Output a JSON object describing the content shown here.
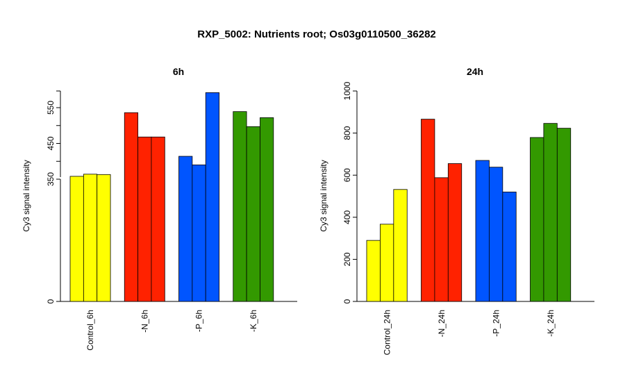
{
  "figure": {
    "title": "RXP_5002: Nutrients root; Os03g0110500_36282"
  },
  "chart_data": [
    {
      "type": "bar",
      "title": "6h",
      "xlabel": "",
      "ylabel": "Cy3 signal intensity",
      "ylim": [
        0,
        595
      ],
      "y_axis_break": true,
      "yticks": [
        0,
        350,
        450,
        550
      ],
      "ytick_labels": [
        "0",
        "350",
        "450",
        "550"
      ],
      "y_minor_ticks": [
        400,
        500
      ],
      "groups": [
        {
          "label": "Control_6h",
          "color": "#FFFF00",
          "values": [
            358,
            364,
            363
          ]
        },
        {
          "label": "-N_6h",
          "color": "#FF2200",
          "values": [
            536,
            468,
            468
          ]
        },
        {
          "label": "-P_6h",
          "color": "#0055FF",
          "values": [
            414,
            390,
            592
          ]
        },
        {
          "label": "-K_6h",
          "color": "#339900",
          "values": [
            539,
            497,
            522
          ]
        }
      ]
    },
    {
      "type": "bar",
      "title": "24h",
      "xlabel": "",
      "ylabel": "Cy3 signal intensity",
      "ylim": [
        0,
        1000
      ],
      "yticks": [
        0,
        200,
        400,
        600,
        800,
        1000
      ],
      "ytick_labels": [
        "0",
        "200",
        "400",
        "600",
        "800",
        "1000"
      ],
      "groups": [
        {
          "label": "Control_24h",
          "color": "#FFFF00",
          "values": [
            290,
            367,
            532
          ]
        },
        {
          "label": "-N_24h",
          "color": "#FF2200",
          "values": [
            866,
            588,
            655
          ]
        },
        {
          "label": "-P_24h",
          "color": "#0055FF",
          "values": [
            670,
            638,
            520
          ]
        },
        {
          "label": "-K_24h",
          "color": "#339900",
          "values": [
            779,
            846,
            823
          ]
        }
      ]
    }
  ]
}
